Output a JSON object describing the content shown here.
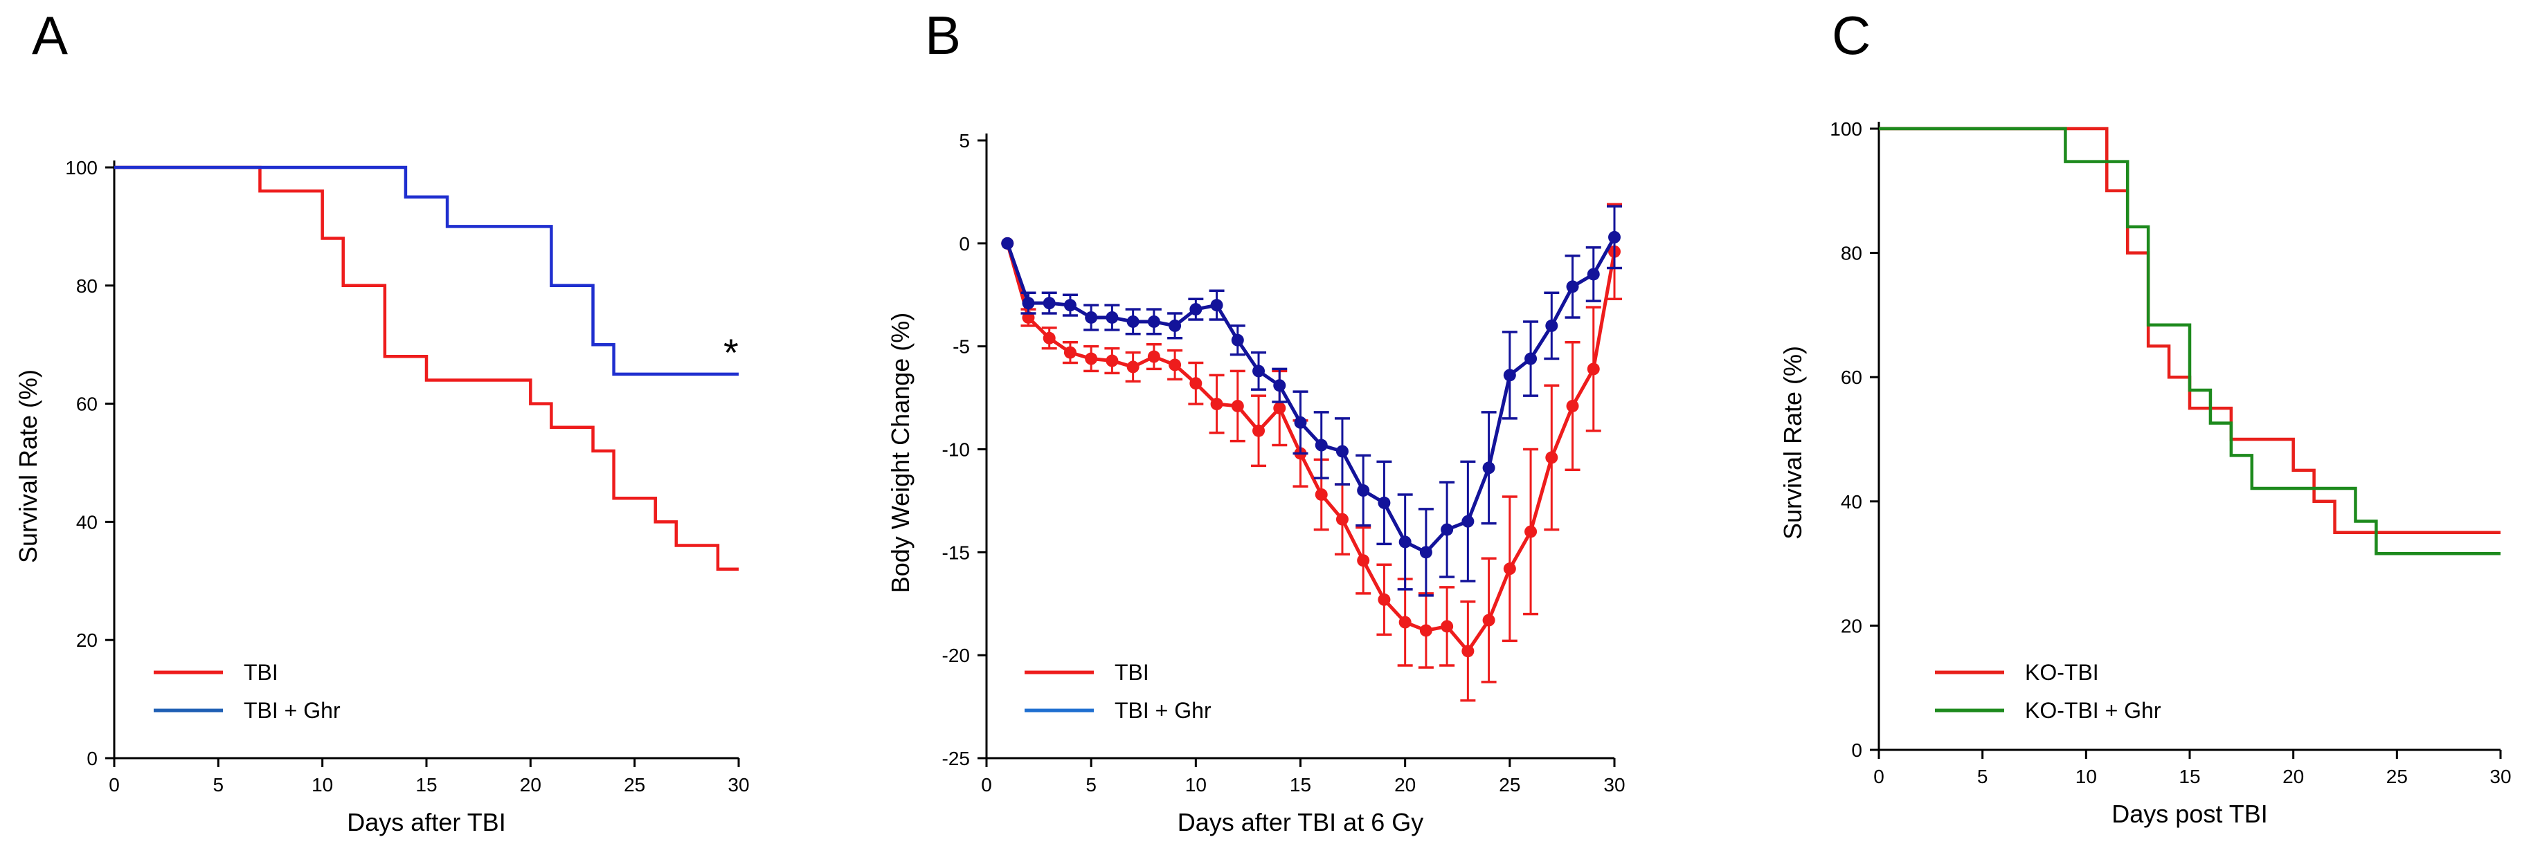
{
  "colors": {
    "tbi": "#ee1c1c",
    "ghr_A_line": "#1f2fcf",
    "ghr_A_legend": "#1f5fb4",
    "ghr_B": "#13139a",
    "ghr_B_legend": "#1f6fd0",
    "ko_tbi": "#e8201b",
    "ko_ghr": "#1d8a1d"
  },
  "chart_data": [
    {
      "panel": "A",
      "type": "line",
      "step": true,
      "xlabel": "Days after TBI",
      "ylabel": "Survival Rate (%)",
      "xlim": [
        0,
        30
      ],
      "ylim": [
        0,
        100
      ],
      "xticks": [
        0,
        5,
        10,
        15,
        20,
        25,
        30
      ],
      "yticks": [
        0,
        20,
        40,
        60,
        80,
        100
      ],
      "annotation": "*",
      "legend_position": "bottom-left",
      "series": [
        {
          "name": "TBI",
          "color_key": "tbi",
          "x": [
            0,
            7,
            10,
            11,
            13,
            15,
            20,
            21,
            23,
            24,
            26,
            27,
            29,
            30
          ],
          "y": [
            100,
            96,
            88,
            80,
            68,
            64,
            60,
            56,
            52,
            44,
            40,
            36,
            32,
            32
          ]
        },
        {
          "name": "TBI + Ghr",
          "color_key": "ghr_A_line",
          "legend_color_key": "ghr_A_legend",
          "x": [
            0,
            14,
            16,
            21,
            23,
            24,
            30
          ],
          "y": [
            100,
            95,
            90,
            80,
            70,
            65,
            65
          ]
        }
      ]
    },
    {
      "panel": "B",
      "type": "line",
      "step": false,
      "error_bars": true,
      "xlabel": "Days after TBI at 6 Gy",
      "ylabel": "Body Weight Change (%)",
      "xlim": [
        0,
        30
      ],
      "ylim": [
        -25,
        5
      ],
      "xticks": [
        0,
        5,
        10,
        15,
        20,
        25,
        30
      ],
      "yticks": [
        -25,
        -20,
        -15,
        -10,
        -5,
        0,
        5
      ],
      "legend_position": "bottom-left",
      "series": [
        {
          "name": "TBI",
          "color_key": "tbi",
          "x": [
            1,
            2,
            3,
            4,
            5,
            6,
            7,
            8,
            9,
            10,
            11,
            12,
            13,
            14,
            15,
            16,
            17,
            18,
            19,
            20,
            21,
            22,
            23,
            24,
            25,
            26,
            27,
            28,
            29,
            30
          ],
          "y": [
            0,
            -3.6,
            -4.6,
            -5.3,
            -5.6,
            -5.7,
            -6.0,
            -5.5,
            -5.9,
            -6.8,
            -7.8,
            -7.9,
            -9.1,
            -8.0,
            -10.2,
            -12.2,
            -13.4,
            -15.4,
            -17.3,
            -18.4,
            -18.8,
            -18.6,
            -19.8,
            -18.3,
            -15.8,
            -14.0,
            -10.4,
            -7.9,
            -6.1,
            -0.4
          ],
          "err": [
            0,
            0.4,
            0.5,
            0.5,
            0.6,
            0.6,
            0.7,
            0.6,
            0.7,
            1.0,
            1.4,
            1.7,
            1.7,
            1.8,
            1.6,
            1.7,
            1.7,
            1.6,
            1.7,
            2.1,
            1.8,
            1.9,
            2.4,
            3.0,
            3.5,
            4.0,
            3.5,
            3.1,
            3.0,
            2.3
          ]
        },
        {
          "name": "TBI + Ghr",
          "color_key": "ghr_B",
          "legend_color_key": "ghr_B_legend",
          "x": [
            1,
            2,
            3,
            4,
            5,
            6,
            7,
            8,
            9,
            10,
            11,
            12,
            13,
            14,
            15,
            16,
            17,
            18,
            19,
            20,
            21,
            22,
            23,
            24,
            25,
            26,
            27,
            28,
            29,
            30
          ],
          "y": [
            0,
            -2.9,
            -2.9,
            -3.0,
            -3.6,
            -3.6,
            -3.8,
            -3.8,
            -4.0,
            -3.2,
            -3.0,
            -4.7,
            -6.2,
            -6.9,
            -8.7,
            -9.8,
            -10.1,
            -12.0,
            -12.6,
            -14.5,
            -15.0,
            -13.9,
            -13.5,
            -10.9,
            -6.4,
            -5.6,
            -4.0,
            -2.1,
            -1.5,
            0.3
          ],
          "err": [
            0,
            0.5,
            0.5,
            0.5,
            0.6,
            0.6,
            0.6,
            0.6,
            0.6,
            0.5,
            0.7,
            0.7,
            0.9,
            0.8,
            1.5,
            1.6,
            1.6,
            1.7,
            2.0,
            2.3,
            2.1,
            2.3,
            2.9,
            2.7,
            2.1,
            1.8,
            1.6,
            1.5,
            1.3,
            1.5
          ]
        }
      ]
    },
    {
      "panel": "C",
      "type": "line",
      "step": true,
      "xlabel": "Days post TBI",
      "ylabel": "Survival Rate (%)",
      "xlim": [
        0,
        30
      ],
      "ylim": [
        0,
        100
      ],
      "xticks": [
        0,
        5,
        10,
        15,
        20,
        25,
        30
      ],
      "yticks": [
        0,
        20,
        40,
        60,
        80,
        100
      ],
      "legend_position": "bottom-left",
      "series": [
        {
          "name": "KO-TBI",
          "color_key": "ko_tbi",
          "x": [
            0,
            11,
            12,
            13,
            14,
            15,
            17,
            20,
            21,
            22,
            30
          ],
          "y": [
            100,
            90,
            80,
            65,
            60,
            55,
            50,
            45,
            40,
            35,
            35
          ]
        },
        {
          "name": "KO-TBI + Ghr",
          "color_key": "ko_ghr",
          "x": [
            0,
            9,
            12,
            13,
            15,
            16,
            17,
            18,
            23,
            24,
            30
          ],
          "y": [
            100,
            94.7,
            84.2,
            68.4,
            57.9,
            52.6,
            47.4,
            42.1,
            36.8,
            31.6,
            31.6
          ]
        }
      ]
    }
  ]
}
